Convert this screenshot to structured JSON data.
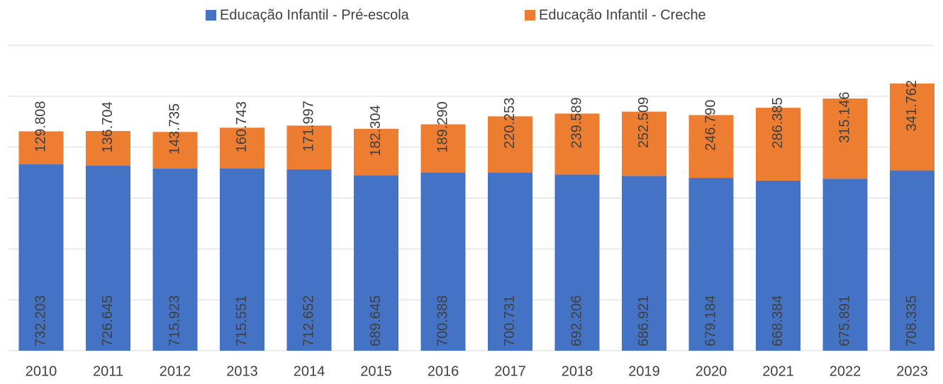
{
  "chart_data": {
    "type": "stacked_bar",
    "categories": [
      "2010",
      "2011",
      "2012",
      "2013",
      "2014",
      "2015",
      "2016",
      "2017",
      "2018",
      "2019",
      "2020",
      "2021",
      "2022",
      "2023"
    ],
    "series": [
      {
        "name": "Educação Infantil - Pré-escola",
        "color": "#4472c4",
        "values": [
          732203,
          726645,
          715923,
          715551,
          712652,
          689645,
          700388,
          700731,
          692206,
          686921,
          679184,
          668384,
          675891,
          708335
        ],
        "value_labels": [
          "732.203",
          "726.645",
          "715.923",
          "715.551",
          "712.652",
          "689.645",
          "700.388",
          "700.731",
          "692.206",
          "686.921",
          "679.184",
          "668.384",
          "675.891",
          "708.335"
        ]
      },
      {
        "name": "Educação Infantil - Creche",
        "color": "#ed7d31",
        "values": [
          129808,
          136704,
          143735,
          160743,
          171997,
          182304,
          189290,
          220253,
          239589,
          252509,
          246790,
          286385,
          315146,
          341762
        ],
        "value_labels": [
          "129.808",
          "136.704",
          "143.735",
          "160.743",
          "171.997",
          "182.304",
          "189.290",
          "220.253",
          "239.589",
          "252.509",
          "246.790",
          "286.385",
          "315.146",
          "341.762"
        ]
      }
    ],
    "ylim": [
      0,
      1200000
    ],
    "yticks": [
      0,
      200000,
      400000,
      600000,
      800000,
      1000000,
      1200000
    ],
    "grid": true
  }
}
